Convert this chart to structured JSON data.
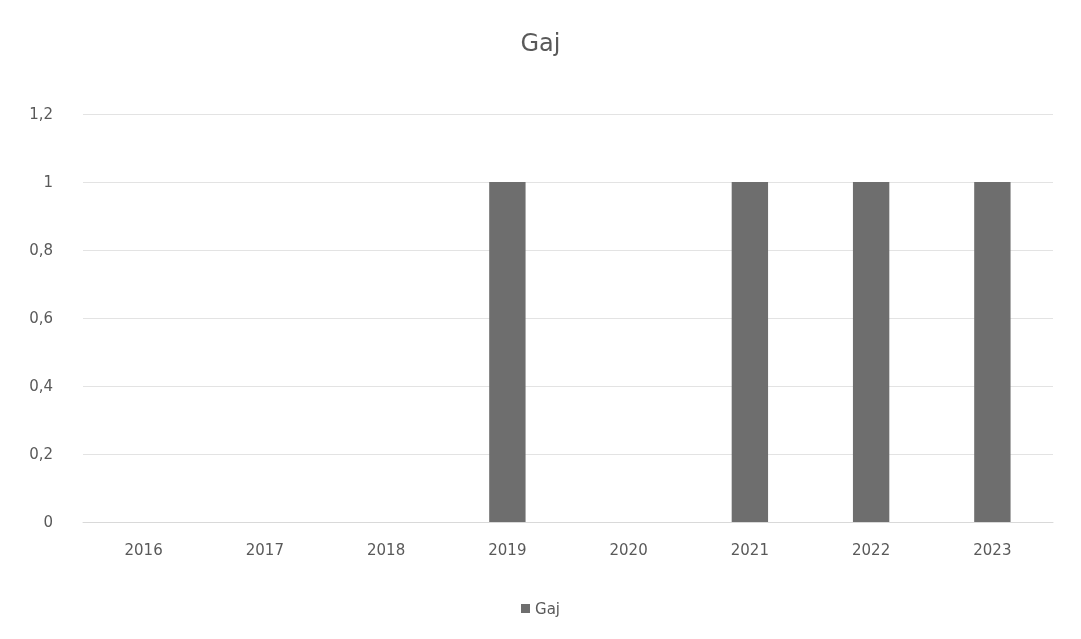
{
  "chart_data": {
    "type": "bar",
    "title": "Gaj",
    "categories": [
      "2016",
      "2017",
      "2018",
      "2019",
      "2020",
      "2021",
      "2022",
      "2023"
    ],
    "series": [
      {
        "name": "Gaj",
        "color": "#6e6e6e",
        "values": [
          0,
          0,
          0,
          1,
          0,
          1,
          1,
          1
        ]
      }
    ],
    "ylim": [
      0,
      1.2
    ],
    "yticks": [
      0,
      {
        "value": 0.2,
        "label": "0,2"
      },
      {
        "value": 0.4,
        "label": "0,4"
      },
      {
        "value": 0.6,
        "label": "0,6"
      },
      {
        "value": 0.8,
        "label": "0,8"
      },
      1,
      {
        "value": 1.2,
        "label": "1,2"
      }
    ],
    "grid": "y",
    "legend": "bottom"
  }
}
